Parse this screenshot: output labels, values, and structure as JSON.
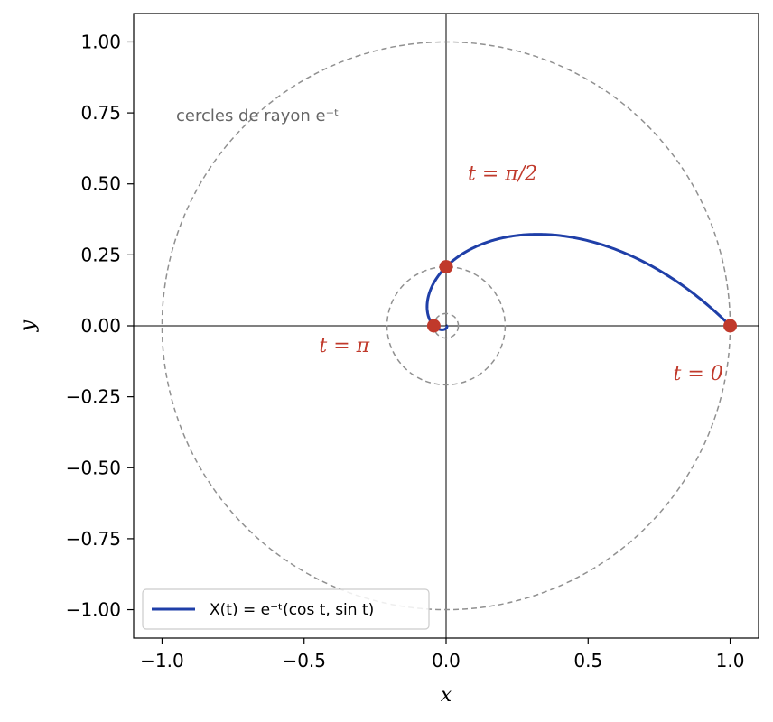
{
  "chart_data": {
    "type": "line",
    "xlabel": "x",
    "ylabel": "y",
    "xlim": [
      -1.1,
      1.1
    ],
    "ylim": [
      -1.1,
      1.1
    ],
    "xticks": [
      -1.0,
      -0.5,
      0.0,
      0.5,
      1.0
    ],
    "xtick_labels": [
      "−1.0",
      "−0.5",
      "0.0",
      "0.5",
      "1.0"
    ],
    "yticks": [
      1.0,
      0.75,
      0.5,
      0.25,
      0.0,
      -0.25,
      -0.5,
      -0.75,
      -1.0
    ],
    "ytick_labels": [
      "1.00",
      "0.75",
      "0.50",
      "0.25",
      "0.00",
      "−0.25",
      "−0.50",
      "−0.75",
      "−1.00"
    ],
    "series": [
      {
        "name": "X(t) = e⁻ᵗ(cos t, sin t)",
        "color": "#1f3fa8",
        "t_range": [
          0,
          6.283
        ],
        "x": [
          1.0,
          0.975,
          0.943,
          0.906,
          0.863,
          0.816,
          0.765,
          0.712,
          0.656,
          0.599,
          0.541,
          0.483,
          0.426,
          0.37,
          0.316,
          0.264,
          0.215,
          0.169,
          0.126,
          0.087,
          0.051,
          0.02,
          0.0,
          -0.01,
          -0.024,
          -0.033,
          -0.04,
          -0.043,
          -0.043,
          -0.043,
          -0.042,
          -0.039,
          -0.035,
          -0.03,
          -0.024,
          -0.018,
          -0.012,
          -0.006,
          0.0,
          0.001
        ],
        "y": [
          0.0,
          0.07,
          0.132,
          0.187,
          0.234,
          0.272,
          0.302,
          0.323,
          0.323,
          0.31,
          0.29,
          0.264,
          0.233,
          0.2,
          0.165,
          0.129,
          0.208,
          0.199,
          0.183,
          0.165,
          0.144,
          0.122,
          0.208,
          0.187,
          0.154,
          0.119,
          0.085,
          0.053,
          0.024,
          0.0,
          -0.005,
          -0.011,
          -0.016,
          -0.019,
          -0.02,
          -0.019,
          -0.017,
          -0.013,
          -0.009,
          0.0
        ]
      }
    ],
    "guide_circles": {
      "label": "cercles de rayon e⁻ᵗ",
      "radii": [
        1.0,
        0.2079,
        0.0432
      ],
      "color": "#909090",
      "style": "dashed"
    },
    "points": [
      {
        "x": 1.0,
        "y": 0.0,
        "label": "t = 0"
      },
      {
        "x": 0.0,
        "y": 0.2079,
        "label": "t = π/2"
      },
      {
        "x": -0.0432,
        "y": 0.0,
        "label": "t = π"
      }
    ],
    "point_color": "#c0392b",
    "legend_position": "lower-left",
    "grid": false
  }
}
